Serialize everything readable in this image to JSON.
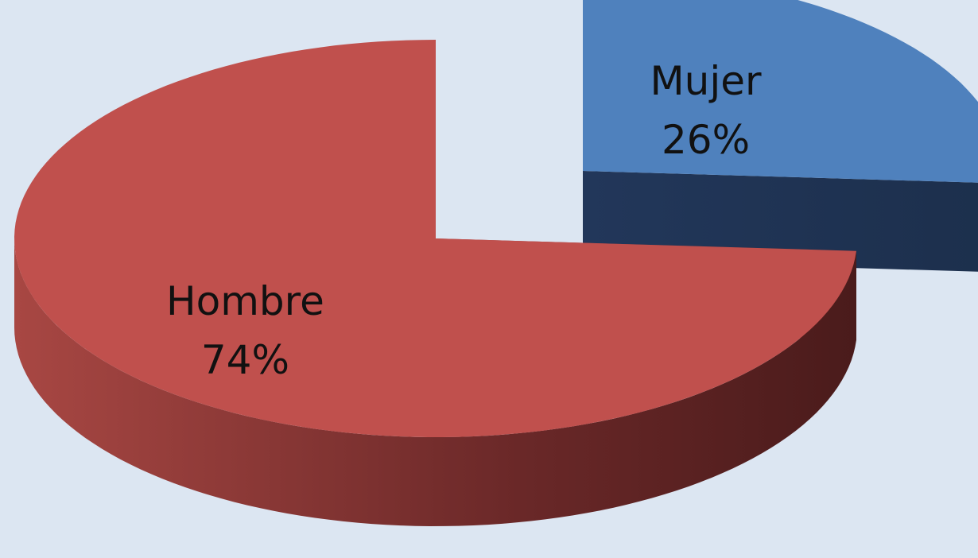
{
  "chart_data": {
    "type": "pie",
    "categories": [
      "Hombre",
      "Mujer"
    ],
    "values": [
      74,
      26
    ],
    "value_labels": [
      "74%",
      "26%"
    ],
    "colors": [
      "#c0504d",
      "#4f81bd"
    ]
  }
}
